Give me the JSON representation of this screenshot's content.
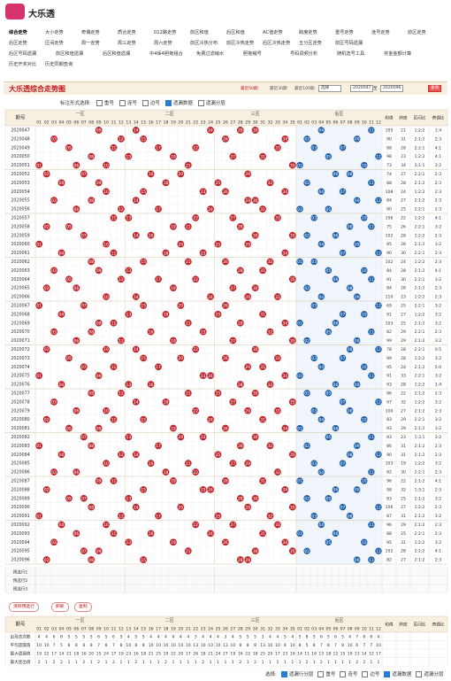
{
  "header": {
    "logo": "大乐透"
  },
  "nav": [
    [
      "综合走势",
      "大小走势",
      "奇偶走势",
      "质合走势",
      "012路走势",
      "前区和值",
      "后区和值",
      "AC值走势",
      "跨度走势",
      "重号走势",
      "连号走势",
      "前区走势"
    ],
    [
      "后区走势",
      "区间走势",
      "周一走势",
      "周三走势",
      "周六走势",
      "前区冷热分布",
      "前区冷热走势",
      "后区冷热走势",
      "五分区走势",
      "前区号码遗漏"
    ],
    [
      "后区号码遗漏",
      "前区和值遗漏",
      "后区和值遗漏",
      "中4保4胆拖组合",
      "免费过滤缩水",
      "胆拖缩号",
      "号码调频分析",
      "随机选号工具",
      "奖金金额计算"
    ],
    [
      "历史开奖对比",
      "历史同期查询"
    ]
  ],
  "panel": {
    "title": "大乐透综合走势图",
    "ranges": [
      "最近30期",
      "最近50期",
      "最近100期"
    ],
    "select": "选择",
    "from": "2020047",
    "to_label": "至",
    "to": "2020096",
    "query": "查询"
  },
  "options": {
    "label": "标注形式选择:",
    "items": [
      "重号",
      "连号",
      "边号",
      "遗漏数据",
      "遗漏分层"
    ]
  },
  "table": {
    "issue_header": "期号",
    "zones": [
      "一区",
      "二区",
      "三区",
      "后区"
    ],
    "front_headers": [
      "01",
      "02",
      "03",
      "04",
      "05",
      "06",
      "07",
      "08",
      "09",
      "10",
      "11",
      "12",
      "13",
      "14",
      "15",
      "16",
      "17",
      "18",
      "19",
      "20",
      "21",
      "22",
      "23",
      "24",
      "25",
      "26",
      "27",
      "28",
      "29",
      "30",
      "31",
      "32",
      "33",
      "34",
      "35"
    ],
    "back_headers": [
      "01",
      "02",
      "03",
      "04",
      "05",
      "06",
      "07",
      "08",
      "09",
      "10",
      "11",
      "12"
    ],
    "stat_headers": [
      "和值",
      "跨度",
      "区间比",
      "奇偶比"
    ],
    "rows": [
      [
        "2020047",
        [
          "09",
          "14",
          "24",
          "28",
          "30"
        ],
        [
          "04",
          "11"
        ],
        105,
        21,
        "1:2:2",
        "1:4"
      ],
      [
        "2020048",
        [
          "03",
          "12",
          "15",
          "26",
          "34"
        ],
        [
          "02",
          "09"
        ],
        90,
        31,
        "2:1:2",
        "2:3"
      ],
      [
        "2020049",
        [
          "05",
          "11",
          "17",
          "22",
          "33"
        ],
        [
          "03",
          "07"
        ],
        88,
        28,
        "2:2:1",
        "4:1"
      ],
      [
        "2020050",
        [
          "08",
          "13",
          "19",
          "27",
          "31"
        ],
        [
          "05",
          "12"
        ],
        98,
        23,
        "1:2:2",
        "4:1"
      ],
      [
        "2020051",
        [
          "01",
          "06",
          "10",
          "21",
          "35"
        ],
        [
          "01",
          "10"
        ],
        73,
        34,
        "3:1:1",
        "3:2"
      ],
      [
        "2020052",
        [
          "02",
          "07",
          "16",
          "20",
          "29"
        ],
        [
          "06",
          "08"
        ],
        74,
        27,
        "2:2:1",
        "2:3"
      ],
      [
        "2020053",
        [
          "04",
          "09",
          "18",
          "25",
          "32"
        ],
        [
          "02",
          "11"
        ],
        88,
        28,
        "2:1:2",
        "2:3"
      ],
      [
        "2020054",
        [
          "10",
          "15",
          "23",
          "26",
          "34"
        ],
        [
          "04",
          "07"
        ],
        108,
        24,
        "1:2:2",
        "2:3"
      ],
      [
        "2020055",
        [
          "03",
          "08",
          "14",
          "29",
          "30"
        ],
        [
          "09",
          "12"
        ],
        84,
        27,
        "2:1:2",
        "2:3"
      ],
      [
        "2020056",
        [
          "06",
          "12",
          "17",
          "24",
          "31"
        ],
        [
          "01",
          "05"
        ],
        90,
        25,
        "2:2:1",
        "2:3"
      ],
      [
        "2020057",
        [
          "11",
          "13",
          "22",
          "27",
          "33"
        ],
        [
          "03",
          "10"
        ],
        106,
        22,
        "1:2:2",
        "4:1"
      ],
      [
        "2020058",
        [
          "02",
          "05",
          "19",
          "21",
          "28"
        ],
        [
          "08",
          "11"
        ],
        75,
        26,
        "2:2:1",
        "3:2"
      ],
      [
        "2020059",
        [
          "07",
          "14",
          "16",
          "30",
          "35"
        ],
        [
          "02",
          "06"
        ],
        102,
        28,
        "1:2:2",
        "2:3"
      ],
      [
        "2020060",
        [
          "01",
          "10",
          "20",
          "25",
          "29"
        ],
        [
          "04",
          "09"
        ],
        85,
        28,
        "2:1:2",
        "3:2"
      ],
      [
        "2020061",
        [
          "04",
          "11",
          "18",
          "23",
          "34"
        ],
        [
          "07",
          "12"
        ],
        90,
        30,
        "2:2:1",
        "2:3"
      ],
      [
        "2020062",
        [
          "08",
          "15",
          "21",
          "26",
          "32"
        ],
        [
          "01",
          "03"
        ],
        102,
        24,
        "1:2:2",
        "2:3"
      ],
      [
        "2020063",
        [
          "03",
          "09",
          "13",
          "28",
          "31"
        ],
        [
          "05",
          "10"
        ],
        84,
        28,
        "2:1:2",
        "4:1"
      ],
      [
        "2020064",
        [
          "05",
          "12",
          "17",
          "22",
          "35"
        ],
        [
          "06",
          "11"
        ],
        91,
        30,
        "2:2:1",
        "3:2"
      ],
      [
        "2020065",
        [
          "02",
          "06",
          "19",
          "27",
          "30"
        ],
        [
          "02",
          "08"
        ],
        84,
        28,
        "2:1:2",
        "2:3"
      ],
      [
        "2020066",
        [
          "10",
          "14",
          "24",
          "29",
          "33"
        ],
        [
          "04",
          "09"
        ],
        110,
        23,
        "1:2:2",
        "2:3"
      ],
      [
        "2020067",
        [
          "01",
          "07",
          "15",
          "20",
          "26"
        ],
        [
          "03",
          "12"
        ],
        69,
        25,
        "2:2:1",
        "3:2"
      ],
      [
        "2020068",
        [
          "04",
          "13",
          "18",
          "25",
          "31"
        ],
        [
          "07",
          "10"
        ],
        91,
        27,
        "1:2:2",
        "3:2"
      ],
      [
        "2020069",
        [
          "09",
          "11",
          "21",
          "28",
          "34"
        ],
        [
          "01",
          "06"
        ],
        103,
        25,
        "2:1:2",
        "3:2"
      ],
      [
        "2020070",
        [
          "03",
          "08",
          "16",
          "23",
          "32"
        ],
        [
          "05",
          "11"
        ],
        82,
        29,
        "2:2:1",
        "2:3"
      ],
      [
        "2020071",
        [
          "06",
          "12",
          "19",
          "27",
          "35"
        ],
        [
          "02",
          "09"
        ],
        99,
        29,
        "2:1:2",
        "3:2"
      ],
      [
        "2020072",
        [
          "02",
          "10",
          "14",
          "22",
          "30"
        ],
        [
          "08",
          "12"
        ],
        78,
        28,
        "2:2:1",
        "0:5"
      ],
      [
        "2020073",
        [
          "05",
          "15",
          "20",
          "26",
          "33"
        ],
        [
          "03",
          "07"
        ],
        99,
        28,
        "1:2:2",
        "3:2"
      ],
      [
        "2020074",
        [
          "07",
          "11",
          "17",
          "29",
          "31"
        ],
        [
          "04",
          "10"
        ],
        95,
        24,
        "2:1:2",
        "5:0"
      ],
      [
        "2020075",
        [
          "01",
          "09",
          "23",
          "24",
          "34"
        ],
        [
          "01",
          "11"
        ],
        91,
        33,
        "2:2:1",
        "3:2"
      ],
      [
        "2020076",
        [
          "04",
          "13",
          "16",
          "28",
          "32"
        ],
        [
          "06",
          "09"
        ],
        93,
        28,
        "1:2:2",
        "1:4"
      ],
      [
        "2020077",
        [
          "08",
          "12",
          "21",
          "25",
          "30"
        ],
        [
          "02",
          "05"
        ],
        96,
        22,
        "2:1:2",
        "2:3"
      ],
      [
        "2020078",
        [
          "03",
          "14",
          "18",
          "27",
          "35"
        ],
        [
          "07",
          "12"
        ],
        97,
        32,
        "1:2:2",
        "3:2"
      ],
      [
        "2020079",
        [
          "06",
          "10",
          "22",
          "29",
          "33"
        ],
        [
          "03",
          "08"
        ],
        100,
        27,
        "2:1:2",
        "2:3"
      ],
      [
        "2020080",
        [
          "02",
          "11",
          "15",
          "24",
          "31"
        ],
        [
          "04",
          "10"
        ],
        83,
        29,
        "2:2:1",
        "3:2"
      ],
      [
        "2020081",
        [
          "05",
          "09",
          "19",
          "26",
          "34"
        ],
        [
          "01",
          "06"
        ],
        93,
        29,
        "2:1:2",
        "3:2"
      ],
      [
        "2020082",
        [
          "07",
          "13",
          "20",
          "23",
          "30"
        ],
        [
          "05",
          "11"
        ],
        93,
        23,
        "1:3:1",
        "3:2"
      ],
      [
        "2020083",
        [
          "01",
          "08",
          "17",
          "28",
          "32"
        ],
        [
          "02",
          "09"
        ],
        86,
        31,
        "2:1:2",
        "2:3"
      ],
      [
        "2020084",
        [
          "04",
          "12",
          "14",
          "25",
          "35"
        ],
        [
          "08",
          "12"
        ],
        90,
        31,
        "2:1:2",
        "2:3"
      ],
      [
        "2020085",
        [
          "10",
          "16",
          "21",
          "27",
          "29"
        ],
        [
          "03",
          "07"
        ],
        103,
        19,
        "1:2:2",
        "3:2"
      ],
      [
        "2020086",
        [
          "03",
          "06",
          "18",
          "22",
          "33"
        ],
        [
          "04",
          "11"
        ],
        82,
        30,
        "2:2:1",
        "2:3"
      ],
      [
        "2020087",
        [
          "09",
          "11",
          "19",
          "26",
          "31"
        ],
        [
          "01",
          "10"
        ],
        96,
        22,
        "2:1:2",
        "4:1"
      ],
      [
        "2020088",
        [
          "02",
          "15",
          "23",
          "24",
          "34"
        ],
        [
          "06",
          "09"
        ],
        98,
        32,
        "1:3:1",
        "2:3"
      ],
      [
        "2020089",
        [
          "05",
          "07",
          "13",
          "28",
          "30"
        ],
        [
          "02",
          "05"
        ],
        83,
        25,
        "2:1:2",
        "3:2"
      ],
      [
        "2020090",
        [
          "08",
          "14",
          "20",
          "29",
          "35"
        ],
        [
          "07",
          "12"
        ],
        106,
        27,
        "1:2:2",
        "2:3"
      ],
      [
        "2020091",
        [
          "01",
          "12",
          "17",
          "25",
          "32"
        ],
        [
          "03",
          "08"
        ],
        87,
        31,
        "2:1:2",
        "3:2"
      ],
      [
        "2020092",
        [
          "04",
          "10",
          "22",
          "27",
          "33"
        ],
        [
          "04",
          "11"
        ],
        96,
        29,
        "2:1:2",
        "2:3"
      ],
      [
        "2020093",
        [
          "06",
          "11",
          "16",
          "24",
          "31"
        ],
        [
          "01",
          "06"
        ],
        88,
        25,
        "2:2:1",
        "2:3"
      ],
      [
        "2020094",
        [
          "03",
          "13",
          "19",
          "26",
          "34"
        ],
        [
          "05",
          "10"
        ],
        95,
        31,
        "1:2:2",
        "3:2"
      ],
      [
        "2020095",
        [
          "07",
          "09",
          "21",
          "30",
          "35"
        ],
        [
          "02",
          "12"
        ],
        102,
        28,
        "2:1:2",
        "4:1"
      ],
      [
        "2020096",
        [
          "02",
          "08",
          "15",
          "28",
          "29"
        ],
        [
          "09",
          "11"
        ],
        82,
        27,
        "2:1:2",
        "2:3"
      ]
    ],
    "preselect": [
      "预选行1",
      "预选行2",
      "预选行3"
    ]
  },
  "buttons": [
    "清除预选行",
    "刷新",
    "复制"
  ],
  "stats": {
    "rows": [
      {
        "label": "出现总次数",
        "values": [
          4,
          4,
          6,
          8,
          5,
          5,
          5,
          5,
          6,
          5,
          6,
          5,
          4,
          5,
          5,
          4,
          4,
          4,
          4,
          4,
          4,
          3,
          4,
          4,
          4,
          3,
          4,
          5,
          5,
          5,
          3,
          4,
          4,
          5,
          4,
          5,
          8,
          5,
          6,
          5,
          6,
          5,
          4,
          7,
          6,
          6,
          4
        ]
      },
      {
        "label": "平均遗漏值",
        "values": [
          10,
          10,
          7,
          5,
          8,
          8,
          8,
          8,
          7,
          8,
          7,
          8,
          10,
          8,
          8,
          10,
          10,
          10,
          10,
          10,
          10,
          13,
          10,
          10,
          10,
          13,
          10,
          8,
          8,
          8,
          13,
          10,
          10,
          8,
          10,
          8,
          5,
          8,
          7,
          8,
          7,
          8,
          10,
          6,
          7,
          7,
          10
        ]
      },
      {
        "label": "最大遗漏值",
        "values": [
          19,
          22,
          17,
          14,
          21,
          18,
          16,
          20,
          15,
          24,
          17,
          19,
          23,
          16,
          18,
          21,
          25,
          19,
          22,
          20,
          17,
          26,
          18,
          21,
          24,
          27,
          19,
          16,
          22,
          18,
          25,
          20,
          17,
          23,
          19,
          14,
          11,
          16,
          13,
          18,
          12,
          15,
          19,
          13,
          14,
          12,
          17
        ]
      },
      {
        "label": "最大连出值",
        "values": [
          2,
          1,
          2,
          2,
          1,
          1,
          2,
          1,
          2,
          1,
          2,
          1,
          1,
          2,
          1,
          1,
          1,
          2,
          1,
          1,
          1,
          1,
          2,
          1,
          1,
          1,
          1,
          2,
          1,
          2,
          1,
          1,
          1,
          1,
          1,
          1,
          2,
          1,
          2,
          1,
          1,
          1,
          1,
          2,
          2,
          1,
          1
        ]
      }
    ]
  },
  "footer": {
    "label": "选择:",
    "items": [
      "遗漏行分层",
      "重号",
      "连号",
      "边号",
      "遗漏数据",
      "遗漏分层"
    ]
  }
}
